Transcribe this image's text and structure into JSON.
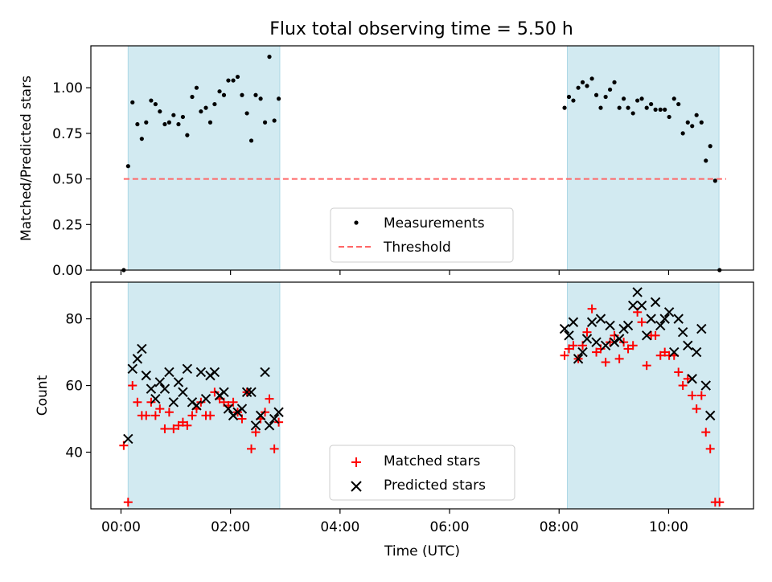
{
  "title": "Flux total observing time = 5.50 h",
  "colors": {
    "shade": "#add8e6",
    "measurement": "#000000",
    "threshold": "#ff6666",
    "matched": "#ff0000",
    "predicted": "#000000"
  },
  "chart_data": [
    {
      "type": "scatter",
      "panel": "top",
      "xlabel": "",
      "ylabel": "Matched/Predicted stars",
      "xlim": [
        -0.55,
        11.55
      ],
      "ylim": [
        0.0,
        1.23
      ],
      "yticks": [
        0.0,
        0.25,
        0.5,
        0.75,
        1.0
      ],
      "ytick_labels": [
        "0.00",
        "0.25",
        "0.50",
        "0.75",
        "1.00"
      ],
      "shaded_intervals_hours": [
        [
          0.13,
          2.9
        ],
        [
          8.15,
          10.92
        ]
      ],
      "threshold": {
        "value": 0.5,
        "x_range": [
          0.05,
          11.05
        ]
      },
      "legend": {
        "position": "lower-center",
        "entries": [
          "Measurements",
          "Threshold"
        ]
      },
      "series": [
        {
          "name": "Measurements",
          "points": [
            [
              0.05,
              0.0
            ],
            [
              0.13,
              0.57
            ],
            [
              0.21,
              0.92
            ],
            [
              0.3,
              0.8
            ],
            [
              0.38,
              0.72
            ],
            [
              0.46,
              0.81
            ],
            [
              0.55,
              0.93
            ],
            [
              0.63,
              0.91
            ],
            [
              0.71,
              0.87
            ],
            [
              0.8,
              0.8
            ],
            [
              0.88,
              0.81
            ],
            [
              0.96,
              0.85
            ],
            [
              1.05,
              0.8
            ],
            [
              1.13,
              0.84
            ],
            [
              1.21,
              0.74
            ],
            [
              1.3,
              0.95
            ],
            [
              1.38,
              1.0
            ],
            [
              1.46,
              0.87
            ],
            [
              1.55,
              0.89
            ],
            [
              1.63,
              0.81
            ],
            [
              1.71,
              0.91
            ],
            [
              1.8,
              0.98
            ],
            [
              1.88,
              0.96
            ],
            [
              1.96,
              1.04
            ],
            [
              2.05,
              1.04
            ],
            [
              2.13,
              1.06
            ],
            [
              2.21,
              0.96
            ],
            [
              2.3,
              0.86
            ],
            [
              2.38,
              0.71
            ],
            [
              2.46,
              0.96
            ],
            [
              2.55,
              0.94
            ],
            [
              2.63,
              0.81
            ],
            [
              2.71,
              1.17
            ],
            [
              2.8,
              0.82
            ],
            [
              2.88,
              0.94
            ],
            [
              8.1,
              0.89
            ],
            [
              8.18,
              0.95
            ],
            [
              8.26,
              0.93
            ],
            [
              8.35,
              1.0
            ],
            [
              8.43,
              1.03
            ],
            [
              8.51,
              1.01
            ],
            [
              8.6,
              1.05
            ],
            [
              8.68,
              0.96
            ],
            [
              8.76,
              0.89
            ],
            [
              8.85,
              0.95
            ],
            [
              8.93,
              0.99
            ],
            [
              9.01,
              1.03
            ],
            [
              9.1,
              0.89
            ],
            [
              9.18,
              0.94
            ],
            [
              9.26,
              0.89
            ],
            [
              9.35,
              0.86
            ],
            [
              9.43,
              0.93
            ],
            [
              9.51,
              0.94
            ],
            [
              9.6,
              0.89
            ],
            [
              9.68,
              0.91
            ],
            [
              9.76,
              0.88
            ],
            [
              9.85,
              0.88
            ],
            [
              9.93,
              0.88
            ],
            [
              10.01,
              0.84
            ],
            [
              10.1,
              0.94
            ],
            [
              10.18,
              0.91
            ],
            [
              10.26,
              0.75
            ],
            [
              10.35,
              0.81
            ],
            [
              10.43,
              0.79
            ],
            [
              10.51,
              0.85
            ],
            [
              10.6,
              0.81
            ],
            [
              10.68,
              0.6
            ],
            [
              10.76,
              0.68
            ],
            [
              10.85,
              0.49
            ],
            [
              10.93,
              0.0
            ]
          ]
        }
      ]
    },
    {
      "type": "scatter",
      "panel": "bottom",
      "xlabel": "Time (UTC)",
      "ylabel": "Count",
      "xlim": [
        -0.55,
        11.55
      ],
      "ylim": [
        23,
        91
      ],
      "xticks_hours": [
        0,
        2,
        4,
        6,
        8,
        10
      ],
      "xtick_labels": [
        "00:00",
        "02:00",
        "04:00",
        "06:00",
        "08:00",
        "10:00"
      ],
      "yticks": [
        40,
        60,
        80
      ],
      "ytick_labels": [
        "40",
        "60",
        "80"
      ],
      "shaded_intervals_hours": [
        [
          0.13,
          2.9
        ],
        [
          8.15,
          10.92
        ]
      ],
      "legend": {
        "position": "lower-center",
        "entries": [
          "Matched stars",
          "Predicted stars"
        ]
      },
      "series": [
        {
          "name": "Matched stars",
          "marker": "plus",
          "points": [
            [
              0.05,
              42
            ],
            [
              0.13,
              25
            ],
            [
              0.21,
              60
            ],
            [
              0.3,
              55
            ],
            [
              0.38,
              51
            ],
            [
              0.46,
              51
            ],
            [
              0.55,
              55
            ],
            [
              0.63,
              51
            ],
            [
              0.71,
              53
            ],
            [
              0.8,
              47
            ],
            [
              0.88,
              52
            ],
            [
              0.96,
              47
            ],
            [
              1.05,
              48
            ],
            [
              1.13,
              49
            ],
            [
              1.21,
              48
            ],
            [
              1.3,
              51
            ],
            [
              1.38,
              53
            ],
            [
              1.46,
              55
            ],
            [
              1.55,
              51
            ],
            [
              1.63,
              51
            ],
            [
              1.71,
              58
            ],
            [
              1.8,
              56
            ],
            [
              1.88,
              55
            ],
            [
              1.96,
              54
            ],
            [
              2.05,
              55
            ],
            [
              2.13,
              52
            ],
            [
              2.21,
              50
            ],
            [
              2.3,
              58
            ],
            [
              2.38,
              41
            ],
            [
              2.46,
              46
            ],
            [
              2.55,
              50
            ],
            [
              2.63,
              52
            ],
            [
              2.71,
              56
            ],
            [
              2.8,
              41
            ],
            [
              2.88,
              49
            ],
            [
              8.1,
              69
            ],
            [
              8.18,
              71
            ],
            [
              8.26,
              72
            ],
            [
              8.35,
              68
            ],
            [
              8.43,
              72
            ],
            [
              8.51,
              76
            ],
            [
              8.6,
              83
            ],
            [
              8.68,
              70
            ],
            [
              8.76,
              71
            ],
            [
              8.85,
              67
            ],
            [
              8.93,
              73
            ],
            [
              9.01,
              75
            ],
            [
              9.1,
              68
            ],
            [
              9.18,
              73
            ],
            [
              9.26,
              71
            ],
            [
              9.35,
              72
            ],
            [
              9.43,
              82
            ],
            [
              9.51,
              79
            ],
            [
              9.6,
              66
            ],
            [
              9.68,
              75
            ],
            [
              9.76,
              75
            ],
            [
              9.85,
              69
            ],
            [
              9.93,
              70
            ],
            [
              10.01,
              69
            ],
            [
              10.1,
              69
            ],
            [
              10.18,
              64
            ],
            [
              10.26,
              60
            ],
            [
              10.35,
              62
            ],
            [
              10.43,
              57
            ],
            [
              10.51,
              53
            ],
            [
              10.6,
              57
            ],
            [
              10.68,
              46
            ],
            [
              10.76,
              41
            ],
            [
              10.85,
              25
            ],
            [
              10.93,
              25
            ]
          ]
        },
        {
          "name": "Predicted stars",
          "marker": "x",
          "points": [
            [
              0.13,
              44
            ],
            [
              0.21,
              65
            ],
            [
              0.3,
              68
            ],
            [
              0.38,
              71
            ],
            [
              0.46,
              63
            ],
            [
              0.55,
              59
            ],
            [
              0.63,
              56
            ],
            [
              0.71,
              61
            ],
            [
              0.8,
              59
            ],
            [
              0.88,
              64
            ],
            [
              0.96,
              55
            ],
            [
              1.05,
              61
            ],
            [
              1.13,
              58
            ],
            [
              1.21,
              65
            ],
            [
              1.3,
              55
            ],
            [
              1.38,
              54
            ],
            [
              1.46,
              64
            ],
            [
              1.55,
              56
            ],
            [
              1.63,
              63
            ],
            [
              1.71,
              64
            ],
            [
              1.8,
              57
            ],
            [
              1.88,
              58
            ],
            [
              1.96,
              53
            ],
            [
              2.05,
              51
            ],
            [
              2.13,
              52
            ],
            [
              2.21,
              53
            ],
            [
              2.3,
              58
            ],
            [
              2.38,
              58
            ],
            [
              2.46,
              48
            ],
            [
              2.55,
              51
            ],
            [
              2.63,
              64
            ],
            [
              2.71,
              48
            ],
            [
              2.8,
              50
            ],
            [
              2.88,
              52
            ],
            [
              8.1,
              77
            ],
            [
              8.18,
              75
            ],
            [
              8.26,
              79
            ],
            [
              8.35,
              68
            ],
            [
              8.43,
              70
            ],
            [
              8.51,
              74
            ],
            [
              8.6,
              79
            ],
            [
              8.68,
              73
            ],
            [
              8.76,
              80
            ],
            [
              8.85,
              72
            ],
            [
              8.93,
              78
            ],
            [
              9.01,
              73
            ],
            [
              9.1,
              74
            ],
            [
              9.18,
              77
            ],
            [
              9.26,
              78
            ],
            [
              9.35,
              84
            ],
            [
              9.43,
              88
            ],
            [
              9.51,
              84
            ],
            [
              9.6,
              75
            ],
            [
              9.68,
              80
            ],
            [
              9.76,
              85
            ],
            [
              9.85,
              78
            ],
            [
              9.93,
              80
            ],
            [
              10.01,
              82
            ],
            [
              10.1,
              70
            ],
            [
              10.18,
              80
            ],
            [
              10.26,
              76
            ],
            [
              10.35,
              72
            ],
            [
              10.43,
              62
            ],
            [
              10.51,
              70
            ],
            [
              10.6,
              77
            ],
            [
              10.68,
              60
            ],
            [
              10.76,
              51
            ]
          ]
        }
      ]
    }
  ]
}
